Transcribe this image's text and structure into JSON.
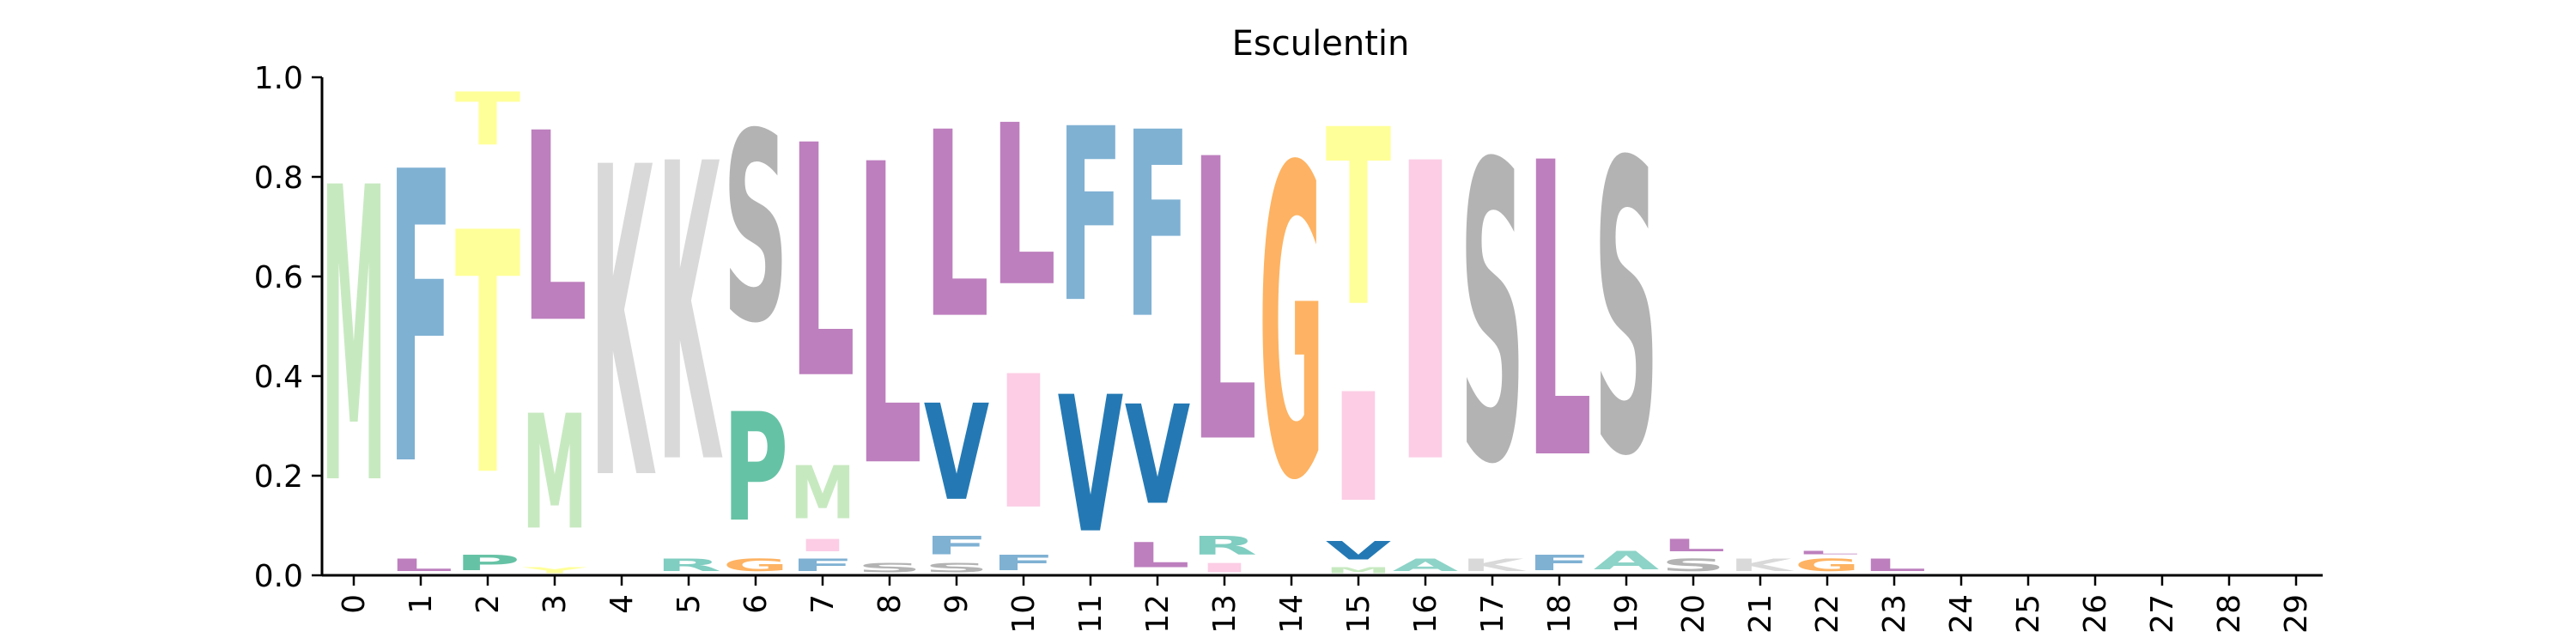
{
  "chart_data": {
    "type": "sequence-logo",
    "title": "Esculentin",
    "xlabel": "",
    "ylabel": "",
    "ylim": [
      0,
      1
    ],
    "y_ticks": [
      "0.0",
      "0.2",
      "0.4",
      "0.6",
      "0.8",
      "1.0"
    ],
    "x_ticks": [
      "0",
      "1",
      "2",
      "3",
      "4",
      "5",
      "6",
      "7",
      "8",
      "9",
      "10",
      "11",
      "12",
      "13",
      "14",
      "15",
      "16",
      "17",
      "18",
      "19",
      "20",
      "21",
      "22",
      "23",
      "24",
      "25",
      "26",
      "27",
      "28",
      "29"
    ],
    "grid": false,
    "colors": {
      "M": "#c7e9c0",
      "F": "#7fb1d3",
      "T": "#ffff99",
      "L": "#bd7fbe",
      "K": "#d9d9d9",
      "S": "#b3b3b3",
      "P": "#66c2a5",
      "V": "#2479b4",
      "I": "#fccde5",
      "G": "#fdb363",
      "R": "#80cdc1",
      "A": "#8dd3c7",
      "Y": "#ffff99"
    },
    "positions": [
      {
        "pos": 0,
        "letters": [
          {
            "aa": "M",
            "value": 0.95
          }
        ]
      },
      {
        "pos": 1,
        "letters": [
          {
            "aa": "L",
            "value": 0.04
          },
          {
            "aa": "F",
            "value": 0.94
          }
        ]
      },
      {
        "pos": 2,
        "letters": [
          {
            "aa": "P",
            "value": 0.05
          },
          {
            "aa": "T",
            "value": 0.78
          },
          {
            "aa": "T",
            "value": 0.17
          }
        ]
      },
      {
        "pos": 3,
        "letters": [
          {
            "aa": "Y",
            "value": 0.02
          },
          {
            "aa": "M",
            "value": 0.37
          },
          {
            "aa": "L",
            "value": 0.61
          }
        ]
      },
      {
        "pos": 4,
        "letters": [
          {
            "aa": "K",
            "value": 1.0
          }
        ]
      },
      {
        "pos": 5,
        "letters": [
          {
            "aa": "R",
            "value": 0.04
          },
          {
            "aa": "K",
            "value": 0.96
          }
        ]
      },
      {
        "pos": 6,
        "letters": [
          {
            "aa": "G",
            "value": 0.04
          },
          {
            "aa": "P",
            "value": 0.35
          },
          {
            "aa": "S",
            "value": 0.61
          }
        ]
      },
      {
        "pos": 7,
        "letters": [
          {
            "aa": "F",
            "value": 0.04
          },
          {
            "aa": "I",
            "value": 0.04
          },
          {
            "aa": "M",
            "value": 0.17
          },
          {
            "aa": "L",
            "value": 0.75
          }
        ]
      },
      {
        "pos": 8,
        "letters": [
          {
            "aa": "S",
            "value": 0.03
          },
          {
            "aa": "L",
            "value": 0.97
          }
        ]
      },
      {
        "pos": 9,
        "letters": [
          {
            "aa": "S",
            "value": 0.03
          },
          {
            "aa": "F",
            "value": 0.06
          },
          {
            "aa": "V",
            "value": 0.31
          },
          {
            "aa": "L",
            "value": 0.6
          }
        ]
      },
      {
        "pos": 10,
        "letters": [
          {
            "aa": "F",
            "value": 0.05
          },
          {
            "aa": "I",
            "value": 0.43
          },
          {
            "aa": "L",
            "value": 0.52
          }
        ]
      },
      {
        "pos": 11,
        "letters": [
          {
            "aa": "V",
            "value": 0.44
          },
          {
            "aa": "F",
            "value": 0.56
          }
        ]
      },
      {
        "pos": 12,
        "letters": [
          {
            "aa": "L",
            "value": 0.08
          },
          {
            "aa": "V",
            "value": 0.32
          },
          {
            "aa": "F",
            "value": 0.6
          }
        ]
      },
      {
        "pos": 13,
        "letters": [
          {
            "aa": "I",
            "value": 0.03
          },
          {
            "aa": "R",
            "value": 0.06
          },
          {
            "aa": "L",
            "value": 0.91
          }
        ]
      },
      {
        "pos": 14,
        "letters": [
          {
            "aa": "G",
            "value": 1.0
          }
        ]
      },
      {
        "pos": 15,
        "letters": [
          {
            "aa": "M",
            "value": 0.02
          },
          {
            "aa": "V",
            "value": 0.06
          },
          {
            "aa": "I",
            "value": 0.35
          },
          {
            "aa": "T",
            "value": 0.57
          }
        ]
      },
      {
        "pos": 16,
        "letters": [
          {
            "aa": "A",
            "value": 0.04
          },
          {
            "aa": "I",
            "value": 0.96
          }
        ]
      },
      {
        "pos": 17,
        "letters": [
          {
            "aa": "K",
            "value": 0.04
          },
          {
            "aa": "S",
            "value": 0.96
          }
        ]
      },
      {
        "pos": 18,
        "letters": [
          {
            "aa": "F",
            "value": 0.05
          },
          {
            "aa": "L",
            "value": 0.95
          }
        ]
      },
      {
        "pos": 19,
        "letters": [
          {
            "aa": "A",
            "value": 0.06
          },
          {
            "aa": "S",
            "value": 0.94
          }
        ]
      },
      {
        "pos": 20,
        "letters": [
          {
            "aa": "S",
            "value": 0.04
          },
          {
            "aa": "L",
            "value": 0.04
          }
        ]
      },
      {
        "pos": 21,
        "letters": [
          {
            "aa": "K",
            "value": 0.04
          }
        ]
      },
      {
        "pos": 22,
        "letters": [
          {
            "aa": "G",
            "value": 0.04
          },
          {
            "aa": "L",
            "value": 0.01
          }
        ]
      },
      {
        "pos": 23,
        "letters": [
          {
            "aa": "L",
            "value": 0.04
          }
        ]
      },
      {
        "pos": 24,
        "letters": []
      },
      {
        "pos": 25,
        "letters": []
      },
      {
        "pos": 26,
        "letters": []
      },
      {
        "pos": 27,
        "letters": []
      },
      {
        "pos": 28,
        "letters": []
      },
      {
        "pos": 29,
        "letters": []
      }
    ]
  }
}
